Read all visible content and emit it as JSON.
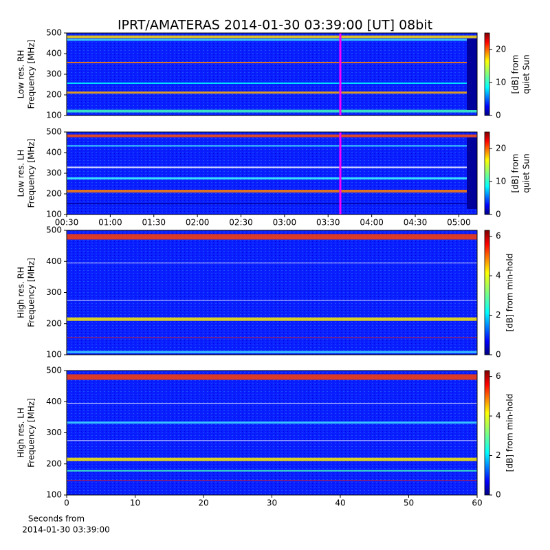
{
  "chart_data": [
    {
      "type": "heatmap",
      "title": "IPRT/AMATERAS 2014-01-30 03:39:00 [UT]   08bit",
      "ylabel": [
        "Low res. RH",
        "Frequency [MHz]"
      ],
      "ylim": [
        100,
        500
      ],
      "yticks": [
        100,
        200,
        300,
        400,
        500
      ],
      "xlim": [
        0.5,
        5.21
      ],
      "marker_x": 3.64,
      "marker_color": "#ff00ff",
      "colorbar_label": [
        "[dB] from",
        "quiet Sun"
      ],
      "clim": [
        0,
        25
      ],
      "cticks": [
        0,
        10,
        20
      ]
    },
    {
      "type": "heatmap",
      "ylabel": [
        "Low res. LH",
        "Frequency [MHz]"
      ],
      "ylim": [
        100,
        500
      ],
      "yticks": [
        100,
        200,
        300,
        400,
        500
      ],
      "xlim": [
        0.5,
        5.21
      ],
      "xticks": [
        {
          "value": 0.5,
          "label": "00:30"
        },
        {
          "value": 1,
          "label": "01:00"
        },
        {
          "value": 1.5,
          "label": "01:30"
        },
        {
          "value": 2,
          "label": "02:00"
        },
        {
          "value": 2.5,
          "label": "02:30"
        },
        {
          "value": 3,
          "label": "03:00"
        },
        {
          "value": 3.5,
          "label": "03:30"
        },
        {
          "value": 4,
          "label": "04:00"
        },
        {
          "value": 4.5,
          "label": "04:30"
        },
        {
          "value": 5,
          "label": "05:00"
        }
      ],
      "marker_x": 3.64,
      "marker_color": "#ff00ff",
      "colorbar_label": [
        "[dB] from",
        "quiet Sun"
      ],
      "clim": [
        0,
        25
      ],
      "cticks": [
        0,
        10,
        20
      ]
    },
    {
      "type": "heatmap",
      "ylabel": [
        "High res. RH",
        "Frequency [MHz]"
      ],
      "ylim": [
        100,
        500
      ],
      "yticks": [
        100,
        200,
        300,
        400,
        500
      ],
      "xlim": [
        0,
        60
      ],
      "colorbar_label": [
        "[dB] from min-hold"
      ],
      "clim": [
        0,
        6.3
      ],
      "cticks": [
        0,
        2,
        4,
        6
      ]
    },
    {
      "type": "heatmap",
      "ylabel": [
        "High res. LH",
        "Frequency [MHz]"
      ],
      "ylim": [
        100,
        500
      ],
      "yticks": [
        100,
        200,
        300,
        400,
        500
      ],
      "xlim": [
        0,
        60
      ],
      "xticks": [
        0,
        10,
        20,
        30,
        40,
        50,
        60
      ],
      "xlabel": [
        "Seconds from",
        "2014-01-30 03:39:00"
      ],
      "colorbar_label": [
        "[dB] from min-hold"
      ],
      "clim": [
        0,
        6.3
      ],
      "cticks": [
        0,
        2,
        4,
        6
      ]
    }
  ]
}
